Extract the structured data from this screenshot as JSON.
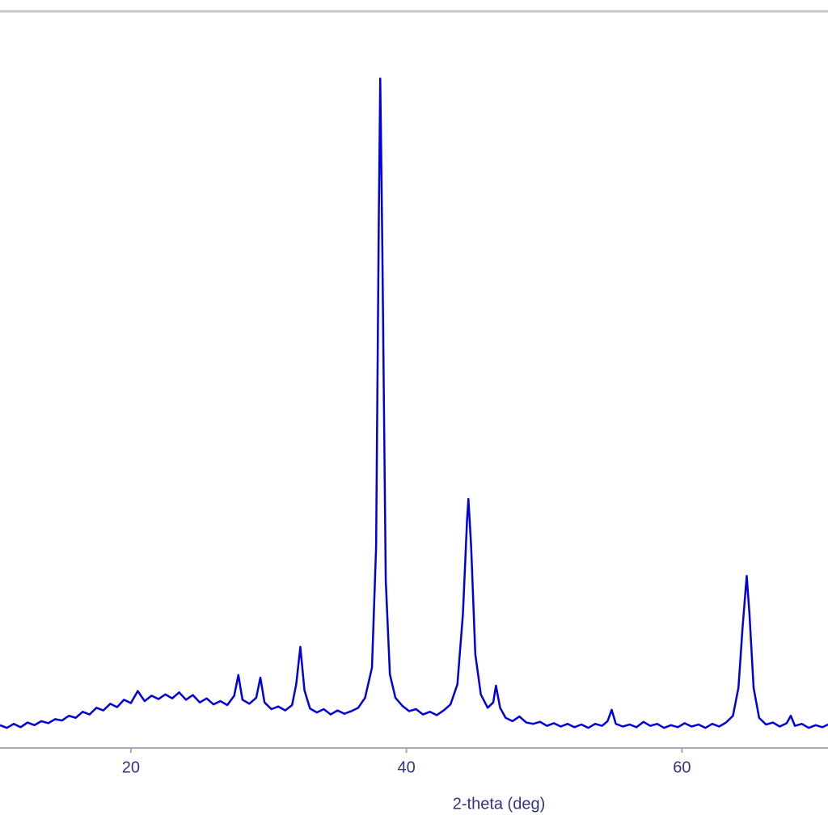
{
  "chart_data": {
    "type": "line",
    "x_label": "2-theta (deg)",
    "color": "#0000dd",
    "xlim": [
      10.5,
      70.6
    ],
    "xticks": [
      20,
      40,
      60
    ],
    "ylim": [
      0,
      100
    ],
    "x": [
      10.5,
      11,
      11.5,
      12,
      12.5,
      13,
      13.5,
      14,
      14.5,
      15,
      15.5,
      16,
      16.5,
      17,
      17.5,
      18,
      18.5,
      19,
      19.5,
      20,
      20.5,
      21,
      21.5,
      22,
      22.5,
      23,
      23.5,
      24,
      24.5,
      25,
      25.5,
      26,
      26.5,
      27,
      27.5,
      27.8,
      28.1,
      28.6,
      29.1,
      29.4,
      29.7,
      30.2,
      30.7,
      31.2,
      31.7,
      32.0,
      32.3,
      32.6,
      33.0,
      33.5,
      34,
      34.5,
      35,
      35.5,
      36,
      36.5,
      37,
      37.5,
      37.8,
      38.0,
      38.1,
      38.25,
      38.5,
      38.8,
      39.2,
      39.7,
      40.2,
      40.7,
      41.2,
      41.7,
      42.2,
      42.7,
      43.2,
      43.7,
      44.1,
      44.4,
      44.5,
      44.7,
      45.0,
      45.4,
      45.9,
      46.3,
      46.5,
      46.8,
      47.2,
      47.7,
      48.2,
      48.7,
      49.2,
      49.7,
      50.2,
      50.7,
      51.2,
      51.7,
      52.2,
      52.7,
      53.2,
      53.7,
      54.2,
      54.6,
      54.9,
      55.2,
      55.7,
      56.2,
      56.7,
      57.2,
      57.7,
      58.2,
      58.7,
      59.2,
      59.7,
      60.2,
      60.7,
      61.2,
      61.7,
      62.2,
      62.7,
      63.2,
      63.7,
      64.1,
      64.4,
      64.7,
      64.9,
      65.2,
      65.6,
      66.1,
      66.6,
      67.1,
      67.6,
      67.9,
      68.2,
      68.7,
      69.2,
      69.7,
      70.2,
      70.6
    ],
    "values": [
      3.4,
      3.0,
      3.6,
      3.1,
      3.8,
      3.4,
      4.0,
      3.7,
      4.3,
      4.1,
      4.8,
      4.5,
      5.4,
      5.0,
      6.0,
      5.6,
      6.6,
      6.1,
      7.2,
      6.7,
      8.5,
      7.0,
      7.8,
      7.3,
      8.0,
      7.4,
      8.3,
      7.2,
      7.9,
      6.8,
      7.4,
      6.5,
      7.0,
      6.4,
      7.8,
      10.9,
      7.2,
      6.6,
      7.5,
      10.5,
      6.8,
      5.8,
      6.2,
      5.6,
      6.4,
      9.5,
      15.1,
      8.6,
      5.9,
      5.3,
      5.8,
      5.0,
      5.6,
      5.1,
      5.5,
      6.0,
      7.5,
      12,
      30,
      80,
      100,
      75,
      25,
      11,
      7.5,
      6.3,
      5.5,
      5.8,
      5.0,
      5.4,
      4.9,
      5.6,
      6.5,
      9.5,
      20,
      34,
      37.2,
      30,
      14,
      8.0,
      6.0,
      6.8,
      9.3,
      6.0,
      4.5,
      4.0,
      4.7,
      3.8,
      3.6,
      3.9,
      3.3,
      3.7,
      3.2,
      3.6,
      3.1,
      3.5,
      3.0,
      3.6,
      3.3,
      4.0,
      5.7,
      3.6,
      3.2,
      3.5,
      3.1,
      3.9,
      3.3,
      3.6,
      3.0,
      3.4,
      3.1,
      3.7,
      3.2,
      3.5,
      3.0,
      3.6,
      3.2,
      3.8,
      4.8,
      9,
      18,
      25.7,
      20,
      9,
      4.5,
      3.5,
      3.8,
      3.2,
      3.7,
      4.8,
      3.3,
      3.6,
      3.0,
      3.4,
      3.1,
      3.5
    ]
  }
}
